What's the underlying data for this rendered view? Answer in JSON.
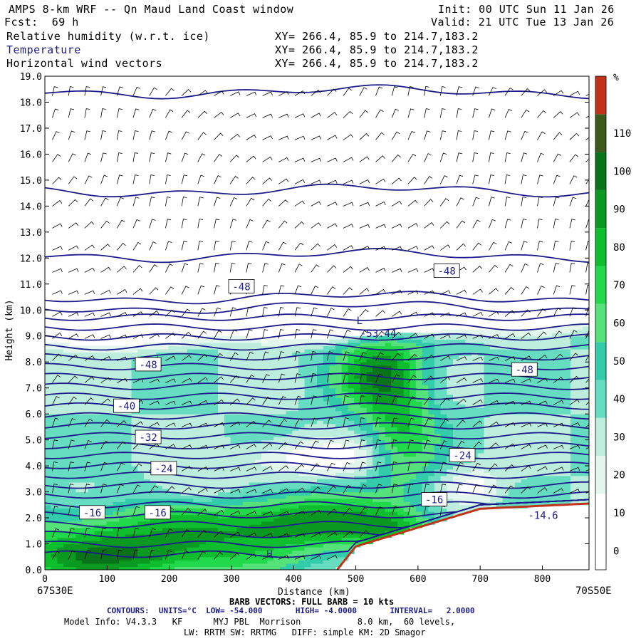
{
  "header": {
    "title": "AMPS 8-km WRF -- Qn Maud Land Coast window",
    "forecast": "Fcst:  69 h",
    "init": "Init: 00 UTC Sun 11 Jan 26",
    "valid": "Valid: 21 UTC Tue 13 Jan 26",
    "fields": [
      {
        "name": "Relative humidity (w.r.t. ice)",
        "xy": "XY= 266.4, 85.9 to 214.7,183.2"
      },
      {
        "name": "Temperature",
        "xy": "XY= 266.4, 85.9 to 214.7,183.2"
      },
      {
        "name": "Horizontal wind vectors",
        "xy": "XY= 266.4, 85.9 to 214.7,183.2"
      }
    ]
  },
  "chart_data": {
    "type": "heatmap",
    "xlabel": "Distance (km)",
    "ylabel": "Height (km)",
    "xlim": [
      0,
      875
    ],
    "ylim": [
      0,
      19
    ],
    "x_ticks": [
      0,
      100,
      200,
      300,
      400,
      500,
      600,
      700,
      800
    ],
    "y_ticks": [
      "0.0",
      "1.0",
      "2.0",
      "3.0",
      "4.0",
      "5.0",
      "6.0",
      "7.0",
      "8.0",
      "9.0",
      "10.0",
      "11.0",
      "12.0",
      "13.0",
      "14.0",
      "15.0",
      "16.0",
      "17.0",
      "18.0",
      "19.0"
    ],
    "left_endpoint": "67S30E",
    "right_endpoint": "70S50E",
    "colorbar": {
      "unit": "%",
      "labels": [
        "0",
        "10",
        "20",
        "30",
        "40",
        "50",
        "60",
        "70",
        "80",
        "90",
        "100",
        "110"
      ],
      "bands": [
        {
          "from": 20,
          "to": 30,
          "color": "#e3f7ef"
        },
        {
          "from": 30,
          "to": 40,
          "color": "#bdeedd"
        },
        {
          "from": 40,
          "to": 50,
          "color": "#66dcc0"
        },
        {
          "from": 50,
          "to": 60,
          "color": "#33ccaa"
        },
        {
          "from": 60,
          "to": 70,
          "color": "#55e27a"
        },
        {
          "from": 70,
          "to": 80,
          "color": "#22d94c"
        },
        {
          "from": 80,
          "to": 90,
          "color": "#0ebe2e"
        },
        {
          "from": 90,
          "to": 100,
          "color": "#0a9a22"
        },
        {
          "from": 100,
          "to": 110,
          "color": "#087318"
        },
        {
          "from": 110,
          "to": 120,
          "color": "#3c5a1a"
        },
        {
          "from": 120,
          "to": 130,
          "color": "#c23218"
        }
      ]
    },
    "contour_labels": [
      {
        "text": "-48",
        "x": 315,
        "y": 10.9
      },
      {
        "text": "-48",
        "x": 645,
        "y": 11.5
      },
      {
        "text": "-48",
        "x": 165,
        "y": 7.9
      },
      {
        "text": "-48",
        "x": 770,
        "y": 7.7
      },
      {
        "text": "-40",
        "x": 130,
        "y": 6.3
      },
      {
        "text": "-32",
        "x": 165,
        "y": 5.1
      },
      {
        "text": "-24",
        "x": 190,
        "y": 3.9
      },
      {
        "text": "-24",
        "x": 670,
        "y": 4.4
      },
      {
        "text": "-16",
        "x": 75,
        "y": 2.2
      },
      {
        "text": "-16",
        "x": 180,
        "y": 2.2
      },
      {
        "text": "-16",
        "x": 625,
        "y": 2.7
      },
      {
        "text": "-14.6",
        "x": 800,
        "y": 2.1
      },
      {
        "text": "-53.44",
        "x": 535,
        "y": 9.1
      },
      {
        "text": "L",
        "x": 505,
        "y": 9.6
      },
      {
        "text": "H",
        "x": 360,
        "y": 0.6
      }
    ]
  },
  "footer": {
    "barb_note": "BARB VECTORS: FULL BARB = 10 kts",
    "contours": "CONTOURS:  UNITS=°C  LOW= -54.000       HIGH= -4.0000       INTERVAL=   2.0000",
    "model_info": "Model Info: V4.3.3   KF      MYJ PBL  Morrison           8.0 km,  60 levels,",
    "physics": "LW: RRTM SW: RRTMG   DIFF: simple KM: 2D Smagor"
  },
  "colors": {
    "contour": "#1c1c8a",
    "terrain": "#c23218"
  }
}
